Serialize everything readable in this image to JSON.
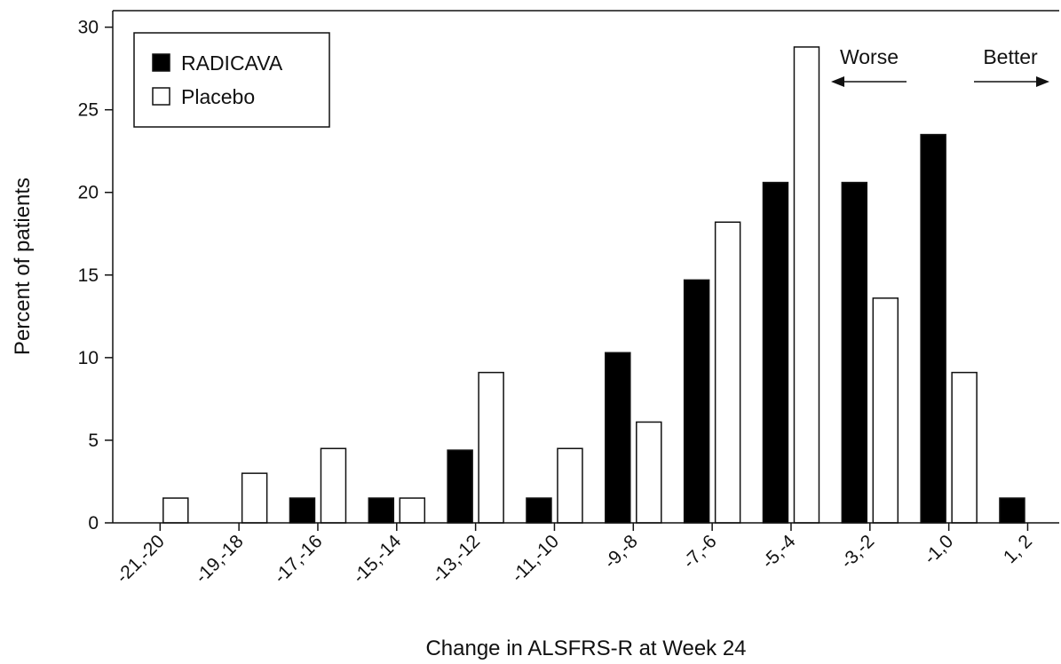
{
  "chart_data": {
    "type": "bar",
    "title": "",
    "xlabel": "Change in ALSFRS-R at Week 24",
    "ylabel": "Percent of patients",
    "ylim": [
      0,
      31
    ],
    "yticks": [
      0,
      5,
      10,
      15,
      20,
      25,
      30
    ],
    "grid": false,
    "legend_position": "top-left",
    "categories": [
      "-21,-20",
      "-19,-18",
      "-17,-16",
      "-15,-14",
      "-13,-12",
      "-11,-10",
      "-9,-8",
      "-7,-6",
      "-5,-4",
      "-3,-2",
      "-1,0",
      "1, 2"
    ],
    "series": [
      {
        "name": "RADICAVA",
        "color": "#000000",
        "values": [
          0,
          0,
          1.5,
          1.5,
          4.4,
          1.5,
          10.3,
          14.7,
          20.6,
          20.6,
          23.5,
          1.5
        ]
      },
      {
        "name": "Placebo",
        "color": "#ffffff",
        "values": [
          1.5,
          3.0,
          4.5,
          1.5,
          9.1,
          4.5,
          6.1,
          18.2,
          28.8,
          13.6,
          9.1,
          0
        ]
      }
    ],
    "annotations": [
      {
        "text": "Worse",
        "arrow": "left"
      },
      {
        "text": "Better",
        "arrow": "right"
      }
    ]
  }
}
